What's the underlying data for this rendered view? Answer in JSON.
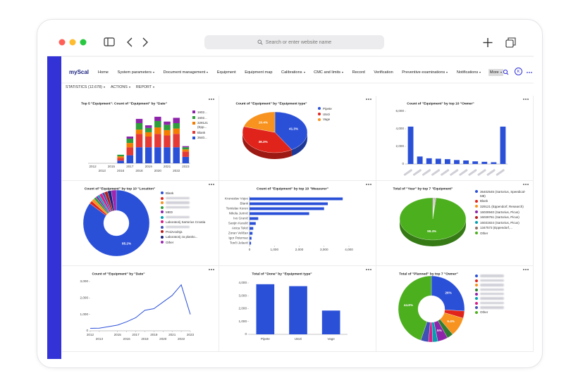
{
  "browser": {
    "address": "Search or enter website name"
  },
  "app": {
    "logo": "myScal",
    "nav": [
      "Home",
      "System parameters",
      "Document management",
      "Equipment",
      "Equipment map",
      "Calibrations",
      "CMC and limits",
      "Record",
      "Verification",
      "Preventive examinations",
      "Notifications",
      "More"
    ],
    "nav_dropdown": [
      false,
      true,
      true,
      false,
      false,
      true,
      true,
      false,
      false,
      true,
      true,
      true
    ],
    "nav_active": 11,
    "user_initial": "K"
  },
  "toolbar": [
    "STATISTICS (12.678)",
    "ACTIONS",
    "REPORT"
  ],
  "chart_data": [
    {
      "type": "bar",
      "stacked": true,
      "title": "Top 5 \"Equipment\": Count of \"Equipment\" by \"Date\"",
      "categories": [
        "2012",
        "2013",
        "2015",
        "2016",
        "2017",
        "2018",
        "2019",
        "2020",
        "2021",
        "2022",
        "2023"
      ],
      "ylim": [
        0,
        100
      ],
      "legend": "right",
      "series": [
        {
          "name": "1602...",
          "color": "#8e24aa",
          "values": [
            0,
            0,
            0,
            0,
            4,
            8,
            5,
            8,
            6,
            10,
            2
          ]
        },
        {
          "name": "1602...",
          "color": "#2e9e3a",
          "values": [
            0,
            0,
            0,
            3,
            8,
            12,
            8,
            12,
            10,
            10,
            4
          ]
        },
        {
          "name": "329121 (Epp...",
          "color": "#f57c00",
          "values": [
            0,
            0,
            0,
            3,
            8,
            8,
            8,
            12,
            10,
            10,
            4
          ]
        },
        {
          "name": "Blank",
          "color": "#e53935",
          "values": [
            0,
            0,
            0,
            5,
            15,
            25,
            20,
            25,
            22,
            25,
            10
          ]
        },
        {
          "name": "3640...",
          "color": "#2b50d8",
          "values": [
            0,
            0,
            0,
            5,
            15,
            30,
            30,
            30,
            30,
            30,
            12
          ]
        }
      ]
    },
    {
      "type": "pie",
      "depth3d": true,
      "title": "Count of \"Equipment\" by \"Equipment type\"",
      "legend": "right",
      "categories": [
        "Pipete",
        "Utezi",
        "Vage"
      ],
      "values": [
        41.3,
        38.3,
        20.4
      ],
      "value_labels": [
        "41.3%",
        "38.3%",
        "20.4%"
      ],
      "colors": [
        "#2b50d8",
        "#e0241b",
        "#f7931e"
      ]
    },
    {
      "type": "bar",
      "title": "Count of \"Equipment\" by top 10 \"Owner\"",
      "categories": [
        null,
        null,
        null,
        null,
        null,
        null,
        null,
        null,
        null,
        null,
        null
      ],
      "values": [
        4250,
        850,
        650,
        600,
        550,
        450,
        400,
        300,
        250,
        200,
        4250
      ],
      "color": "#2b50d8",
      "ylim": [
        0,
        6000
      ],
      "yticks": [
        0,
        {
          "value": 2000,
          "label": "2,000"
        },
        {
          "value": 4000,
          "label": "4,000"
        },
        {
          "value": 6000,
          "label": "6,000"
        }
      ]
    },
    {
      "type": "pie",
      "donut": true,
      "title": "Count of \"Equipment\" by top 10 \"Location\"",
      "legend": "right",
      "categories": [
        "Blank",
        null,
        null,
        null,
        "MED",
        null,
        "Laboratorij Sartorius Croatia",
        null,
        "Proizvodnja",
        "Laboratorij za planito...",
        "Other"
      ],
      "values": [
        85.2,
        1.5,
        1.5,
        1.2,
        1,
        1,
        1.5,
        1.2,
        1.6,
        1.8,
        2.5
      ],
      "value_labels": [
        "85.2%",
        null,
        null,
        null,
        null,
        null,
        null,
        null,
        null,
        null,
        null
      ],
      "colors": [
        "#2b50d8",
        "#e0241b",
        "#f7931e",
        "#2e9e3a",
        "#8e24aa",
        "#00a0b0",
        "#d81b88",
        "#3f51b5",
        "#b71c1c",
        "#1a237e",
        "#9c27b0"
      ]
    },
    {
      "type": "bar",
      "orientation": "horizontal",
      "title": "Count of \"Equipment\" by top 10 \"Measurer\"",
      "categories": [
        "Krunoslav Vujec",
        "Blank",
        "Tomislav Koren",
        "Nikola Jurinić",
        "Ivo Granić",
        "Sanjin Karalić",
        "Anica Tekić",
        "Zoran Veličan",
        "Igor Peternac",
        "Tonči Jelavić"
      ],
      "values": [
        3750,
        3150,
        3000,
        2400,
        350,
        250,
        150,
        120,
        80,
        60
      ],
      "color": "#2b50d8",
      "xlim": [
        0,
        4000
      ],
      "xticks": [
        0,
        {
          "value": 1000,
          "label": "1,000"
        },
        {
          "value": 2000,
          "label": "2,000"
        },
        {
          "value": 3000,
          "label": "3,000"
        },
        {
          "value": 4000,
          "label": "4,000"
        }
      ]
    },
    {
      "type": "pie",
      "depth3d": true,
      "title": "Total of \"Year\" by top 7 \"Equipment\"",
      "legend": "right",
      "categories": [
        "36402545 (Sartorius, Speedical-M8)",
        "Blank",
        "329121 (Eppendorf, Research)",
        "16028940 (Sartorius, Picus)",
        "16028761 (Sartorius, Picus)",
        "16031924 (Sartorius, Picus)",
        "1347573 (Eppendorf,...",
        "Other"
      ],
      "values": [
        0.3,
        0.2,
        0.2,
        0.2,
        0.2,
        0.2,
        0.3,
        98.4
      ],
      "value_labels": [
        null,
        null,
        null,
        null,
        null,
        null,
        null,
        "98.4%"
      ],
      "colors": [
        "#2b50d8",
        "#e0241b",
        "#f7931e",
        "#8e24aa",
        "#b71c1c",
        "#00a0b0",
        "#8d6e63",
        "#4caf1e"
      ]
    },
    {
      "type": "line",
      "title": "Count of \"Equipment\" by \"Date\"",
      "x": [
        2012,
        2013,
        2014,
        2015,
        2016,
        2017,
        2018,
        2019,
        2020,
        2021,
        2022,
        2023
      ],
      "values": [
        150,
        160,
        250,
        350,
        550,
        800,
        1250,
        1350,
        1750,
        2150,
        2800,
        1000
      ],
      "color": "#2b50d8",
      "xlim": [
        2012,
        2023
      ],
      "xticks": [
        2012,
        2013,
        2015,
        2016,
        2017,
        2018,
        2019,
        2020,
        2021,
        2022,
        2023
      ],
      "ylim": [
        0,
        3000
      ],
      "yticks": [
        0,
        {
          "value": 1000,
          "label": "1,000"
        },
        {
          "value": 2000,
          "label": "2,000"
        },
        {
          "value": 3000,
          "label": "3,000"
        }
      ]
    },
    {
      "type": "bar",
      "title": "Total of \"Done\" by \"Equipment type\"",
      "categories": [
        "Pipete",
        "Utezi",
        "Vage"
      ],
      "values": [
        3900,
        3750,
        1850
      ],
      "color": "#2b50d8",
      "ylim": [
        0,
        4000
      ],
      "yticks": [
        0,
        {
          "value": 1000,
          "label": "1,000"
        },
        {
          "value": 2000,
          "label": "2,000"
        },
        {
          "value": 3000,
          "label": "3,000"
        },
        {
          "value": 4000,
          "label": "4,000"
        }
      ]
    },
    {
      "type": "pie",
      "donut": true,
      "title": "Total of \"Planned\" by top 7 \"Owner\"",
      "legend": "right",
      "categories": [
        null,
        null,
        null,
        null,
        null,
        null,
        null,
        null,
        "Other"
      ],
      "values": [
        26,
        3.5,
        9.4,
        3,
        5,
        2.5,
        2,
        3.8,
        44.8
      ],
      "value_labels": [
        "26%",
        null,
        "9.4%",
        null,
        "5%",
        null,
        null,
        null,
        "44.8%"
      ],
      "colors": [
        "#2b50d8",
        "#e0241b",
        "#f7931e",
        "#2e7d32",
        "#8e24aa",
        "#00a0b0",
        "#d81b88",
        "#3f51b5",
        "#4caf1e"
      ]
    }
  ]
}
